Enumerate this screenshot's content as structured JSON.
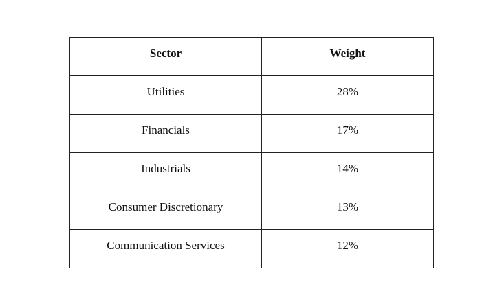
{
  "chart_data": {
    "type": "table",
    "columns": [
      "Sector",
      "Weight"
    ],
    "rows": [
      [
        "Utilities",
        "28%"
      ],
      [
        "Financials",
        "17%"
      ],
      [
        "Industrials",
        "14%"
      ],
      [
        "Consumer Discretionary",
        "13%"
      ],
      [
        "Communication Services",
        "12%"
      ]
    ]
  }
}
